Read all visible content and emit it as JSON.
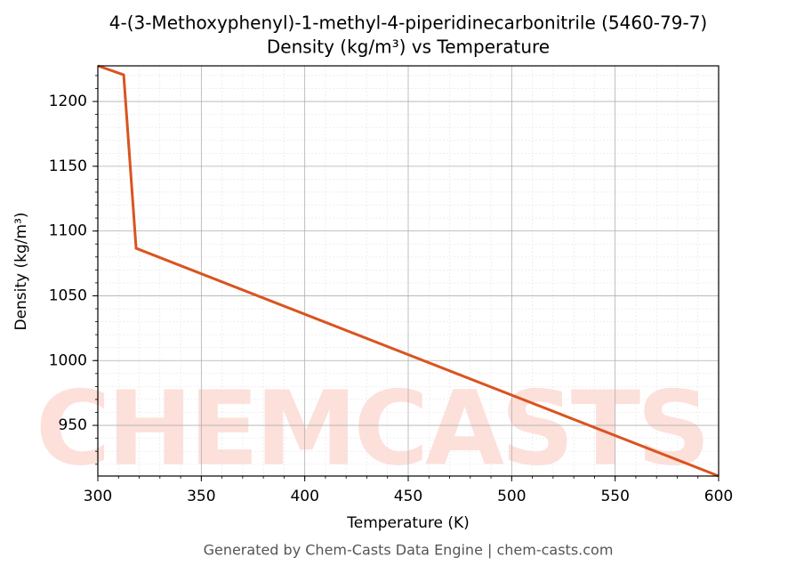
{
  "chart_data": {
    "type": "line",
    "title": "4-(3-Methoxyphenyl)-1-methyl-4-piperidinecarbonitrile (5460-79-7)",
    "subtitle": "Density (kg/m³) vs Temperature",
    "x_label": "Temperature (K)",
    "y_label": "Density (kg/m³)",
    "watermark": "CHEMCASTS",
    "footer": "Generated by Chem-Casts Data Engine | chem-casts.com",
    "x": [
      300,
      312.5,
      318.5,
      600
    ],
    "series": [
      {
        "name": "Density",
        "color": "#d95420",
        "values": [
          1227.5,
          1220.6,
          1086.7,
          910.9
        ]
      }
    ],
    "xlim": [
      300,
      600
    ],
    "xticks": [
      300,
      350,
      400,
      450,
      500,
      550,
      600
    ],
    "ylim": [
      910.9,
      1227.5
    ],
    "yticks": [
      950,
      1000,
      1050,
      1100,
      1150,
      1200
    ],
    "grid": true,
    "minor_grid": true
  }
}
